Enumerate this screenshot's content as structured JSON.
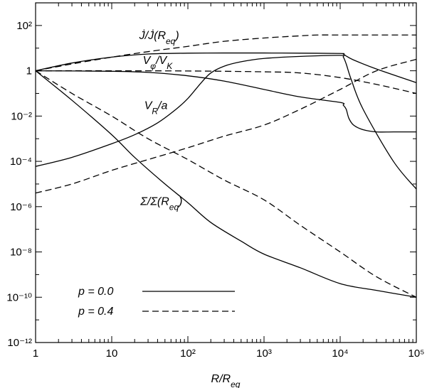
{
  "chart_data": {
    "type": "line",
    "title": "",
    "xlabel": "R/R_eq",
    "ylabel": "",
    "xscale": "log",
    "yscale": "log",
    "xlim": [
      1,
      100000
    ],
    "ylim": [
      1e-12,
      1000
    ],
    "x_ticks": [
      {
        "value": 1,
        "label": "1"
      },
      {
        "value": 10,
        "label": "10"
      },
      {
        "value": 100,
        "label": "10²"
      },
      {
        "value": 1000,
        "label": "10³"
      },
      {
        "value": 10000,
        "label": "10⁴"
      },
      {
        "value": 100000,
        "label": "10⁵"
      }
    ],
    "y_ticks": [
      {
        "value": 1e-12,
        "label": "10⁻¹²"
      },
      {
        "value": 1e-10,
        "label": "10⁻¹⁰"
      },
      {
        "value": 1e-08,
        "label": "10⁻⁸"
      },
      {
        "value": 1e-06,
        "label": "10⁻⁶"
      },
      {
        "value": 0.0001,
        "label": "10⁻⁴"
      },
      {
        "value": 0.01,
        "label": "10⁻²"
      },
      {
        "value": 1,
        "label": "1"
      },
      {
        "value": 100,
        "label": "10²"
      }
    ],
    "annotations": [
      {
        "text": "J̇/J̇(R_eq)",
        "x": 42,
        "y": 25
      },
      {
        "text": "V_φ/V_K",
        "x": 40,
        "y": 2.0
      },
      {
        "text": "V_R/a",
        "x": 38,
        "y": 0.02
      },
      {
        "text": "Σ/Σ(R_eq)",
        "x": 45,
        "y": 1.2e-06
      }
    ],
    "legend": {
      "position": "bottom-left",
      "entries": [
        {
          "label": "p = 0.0",
          "style": "solid"
        },
        {
          "label": "p = 0.4",
          "style": "dashed"
        }
      ]
    },
    "series": [
      {
        "name": "J̇/J̇(R_eq), p = 0.0",
        "style": "solid",
        "x": [
          1,
          3,
          10,
          30,
          100,
          300,
          1000,
          3000,
          10000,
          11000,
          12000,
          15000,
          30000,
          100000
        ],
        "y": [
          1,
          2.2,
          4,
          5.5,
          6,
          6.1,
          6.1,
          6,
          5.8,
          5.5,
          4.5,
          3,
          1.2,
          0.3
        ]
      },
      {
        "name": "J̇/J̇(R_eq), p = 0.4",
        "style": "dashed",
        "x": [
          1,
          3,
          10,
          30,
          100,
          300,
          1000,
          3000,
          5000,
          10000,
          30000,
          100000
        ],
        "y": [
          1,
          2,
          4,
          7,
          12,
          20,
          28,
          35,
          38,
          38,
          38,
          38
        ]
      },
      {
        "name": "V_φ/V_K, p = 0.0",
        "style": "solid",
        "x": [
          1,
          10,
          30,
          100,
          300,
          1000,
          3000,
          10000,
          11000,
          12000,
          13000,
          15000,
          20000,
          30000,
          50000,
          100000
        ],
        "y": [
          1,
          0.95,
          0.85,
          0.6,
          0.35,
          0.15,
          0.07,
          0.04,
          0.03,
          0.02,
          0.008,
          0.004,
          0.0025,
          0.002,
          0.002,
          0.002
        ]
      },
      {
        "name": "V_φ/V_K, p = 0.4",
        "style": "dashed",
        "x": [
          1,
          10,
          100,
          1000,
          3000,
          10000,
          30000,
          100000
        ],
        "y": [
          1,
          1,
          0.98,
          0.9,
          0.8,
          0.5,
          0.25,
          0.1
        ]
      },
      {
        "name": "V_R/a, p = 0.0",
        "style": "solid",
        "x": [
          1,
          3,
          10,
          20,
          40,
          70,
          100,
          150,
          200,
          300,
          500,
          1000,
          3000,
          10000,
          11000,
          12000,
          14000,
          20000,
          50000,
          100000
        ],
        "y": [
          6e-05,
          0.00015,
          0.0006,
          0.0015,
          0.005,
          0.02,
          0.06,
          0.3,
          0.8,
          1.6,
          2.5,
          3.5,
          4.3,
          4.8,
          4,
          2,
          0.4,
          0.02,
          0.0001,
          6e-06
        ]
      },
      {
        "name": "V_R/a, p = 0.4",
        "style": "dashed",
        "x": [
          1,
          3,
          10,
          30,
          100,
          300,
          1000,
          3000,
          10000,
          30000,
          100000
        ],
        "y": [
          4e-06,
          1e-05,
          4e-05,
          0.00012,
          0.0004,
          0.0013,
          0.004,
          0.02,
          0.15,
          1.0,
          3.2
        ]
      },
      {
        "name": "Σ/Σ(R_eq), p = 0.0",
        "style": "solid",
        "x": [
          1,
          3,
          10,
          20,
          50,
          100,
          200,
          500,
          1000,
          3000,
          10000,
          30000,
          100000
        ],
        "y": [
          1,
          0.05,
          0.0015,
          0.00015,
          1e-05,
          1.5e-06,
          2e-07,
          3e-08,
          8e-09,
          2e-09,
          4e-10,
          2e-10,
          1e-10
        ]
      },
      {
        "name": "Σ/Σ(R_eq), p = 0.4",
        "style": "dashed",
        "x": [
          1,
          3,
          10,
          30,
          100,
          300,
          1000,
          3000,
          10000,
          30000,
          100000
        ],
        "y": [
          1,
          0.1,
          0.01,
          0.001,
          0.00012,
          1.5e-05,
          2e-06,
          1.5e-07,
          1e-08,
          8e-10,
          1e-10
        ]
      }
    ]
  }
}
